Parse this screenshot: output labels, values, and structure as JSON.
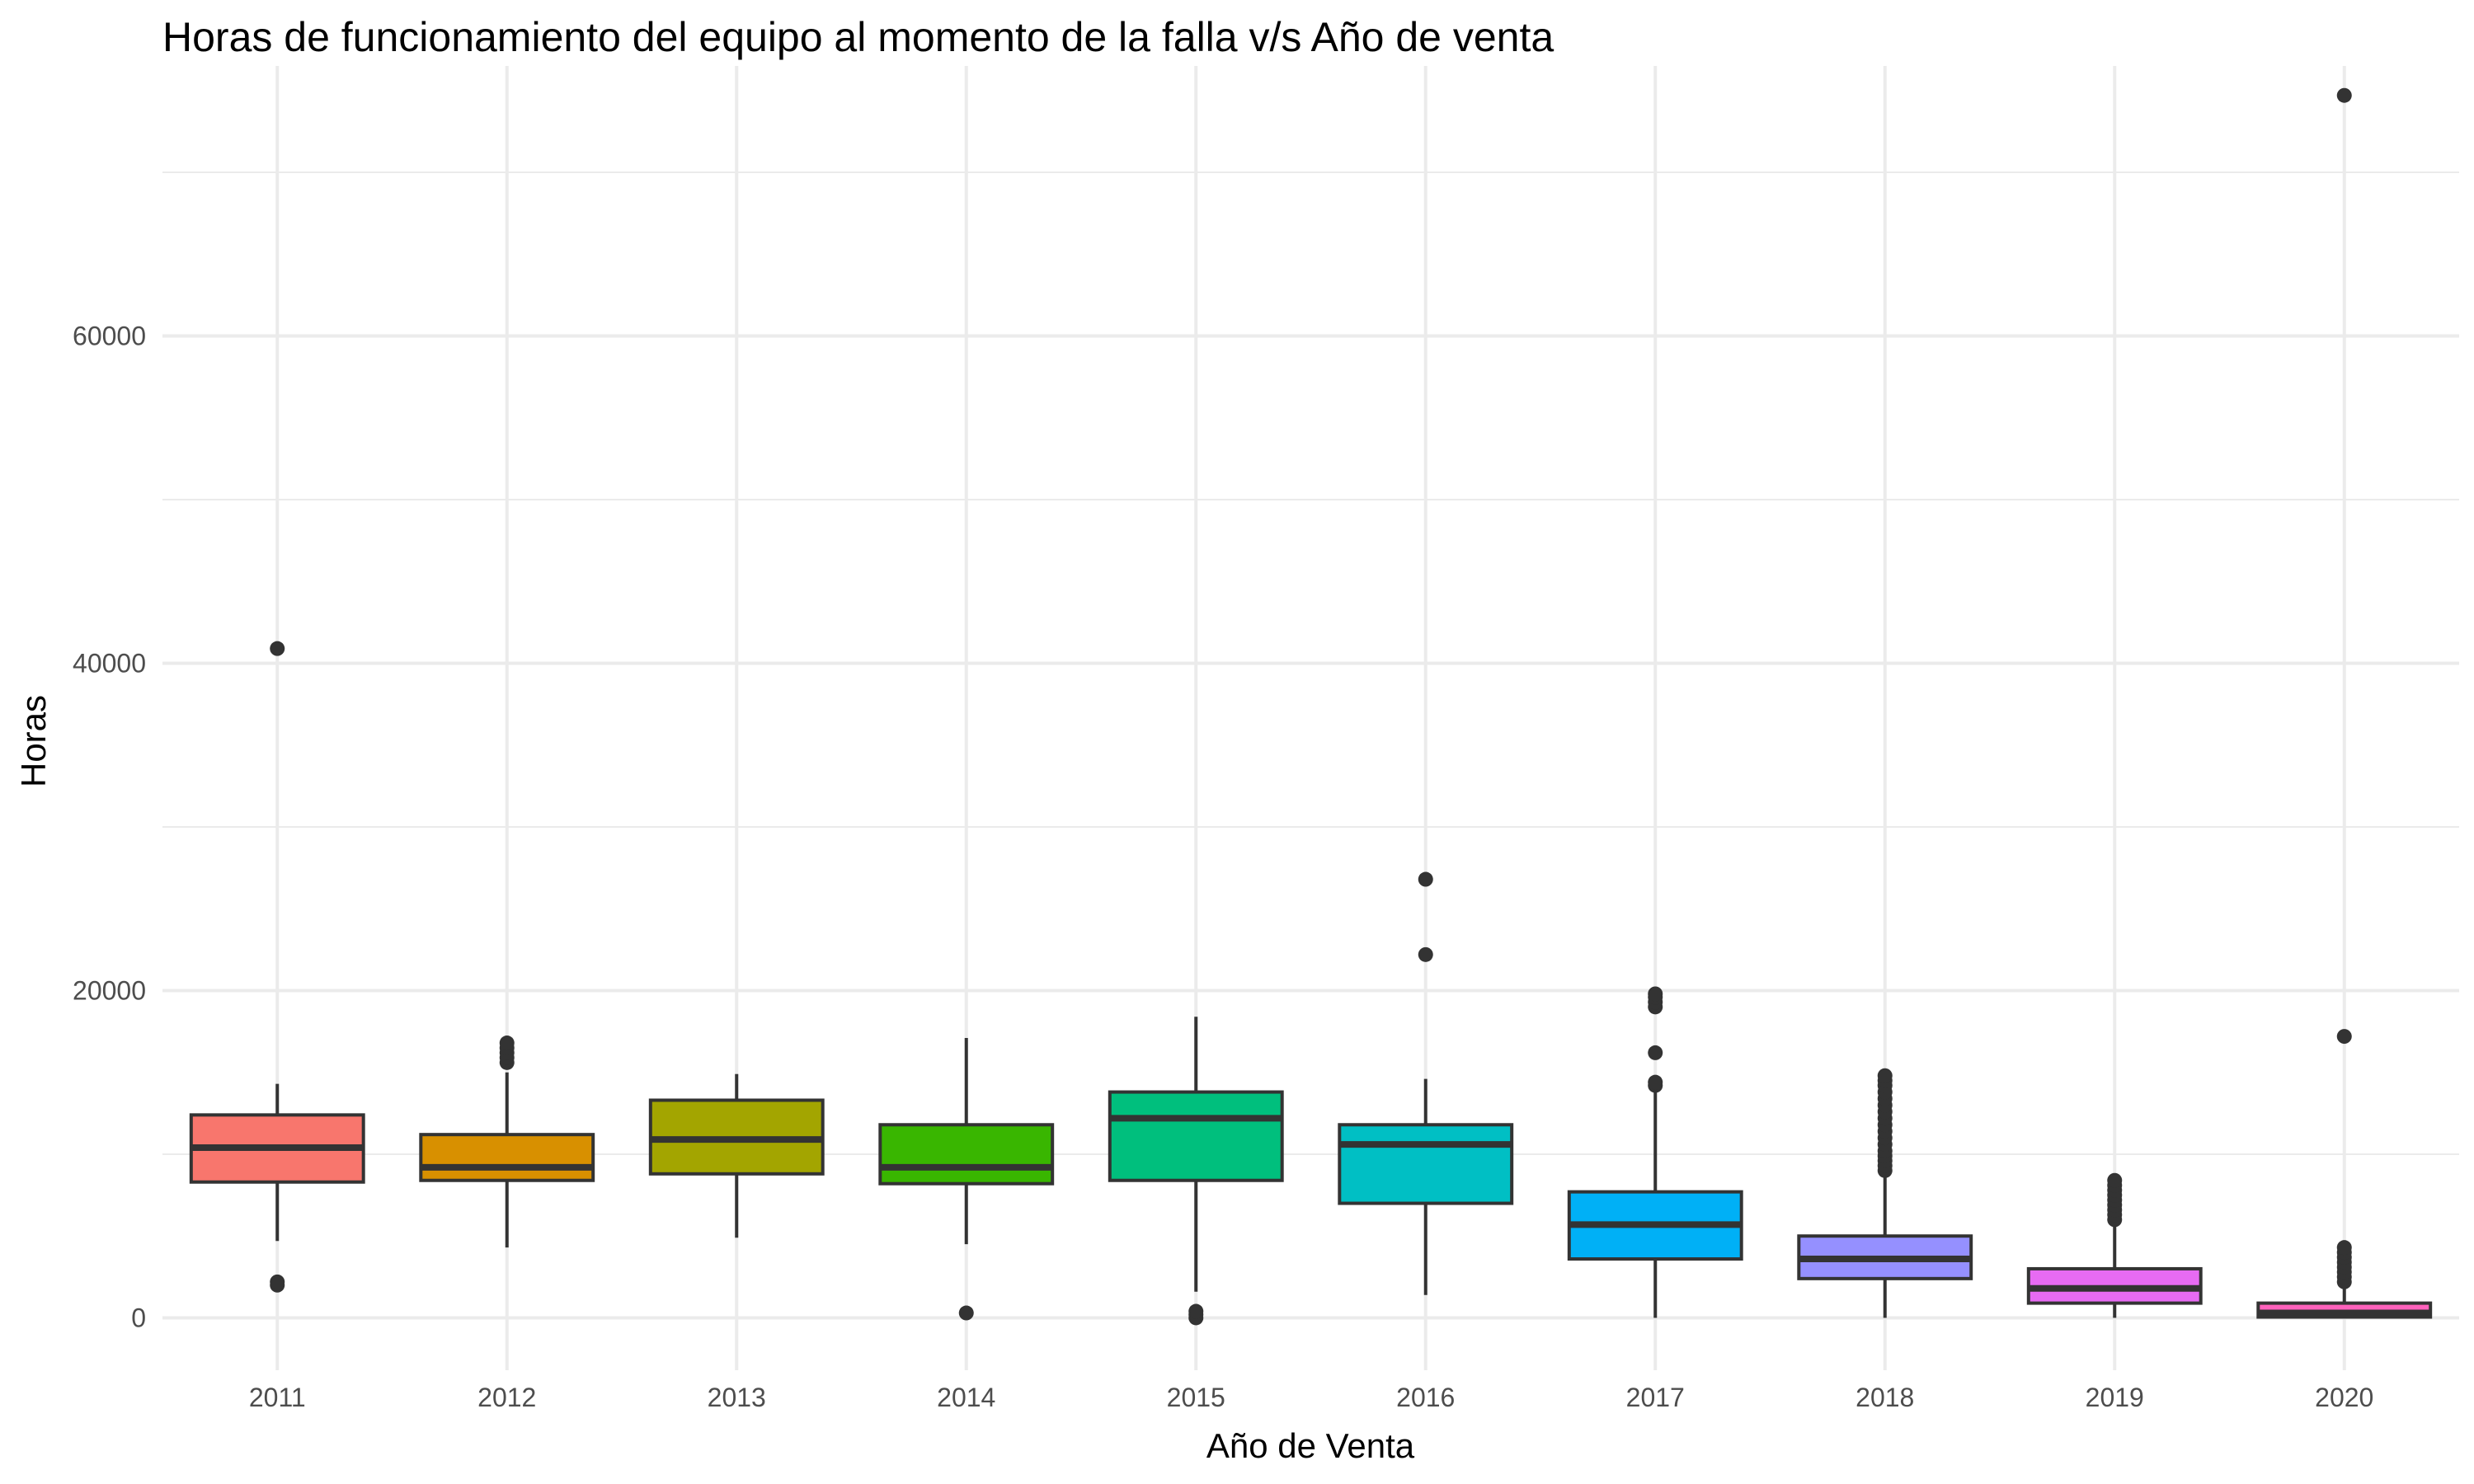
{
  "chart_data": {
    "type": "boxplot",
    "title": "Horas de funcionamiento del equipo al momento de la falla v/s Año de venta",
    "xlabel": "Año de Venta",
    "ylabel": "Horas",
    "ylim": [
      -3200,
      76500
    ],
    "y_ticks": [
      0,
      20000,
      40000,
      60000
    ],
    "y_tick_labels": [
      "0",
      "20000",
      "40000",
      "60000"
    ],
    "grid": true,
    "legend": "none",
    "categories": [
      "2011",
      "2012",
      "2013",
      "2014",
      "2015",
      "2016",
      "2017",
      "2018",
      "2019",
      "2020"
    ],
    "boxes": [
      {
        "category": "2011",
        "color": "#F8766D",
        "lower_whisker": 4700,
        "q1": 8300,
        "median": 10400,
        "q3": 12400,
        "upper_whisker": 14300,
        "outliers": [
          2000,
          2200,
          40900
        ]
      },
      {
        "category": "2012",
        "color": "#D89000",
        "lower_whisker": 4300,
        "q1": 8400,
        "median": 9200,
        "q3": 11200,
        "upper_whisker": 15000,
        "outliers": [
          15600,
          15900,
          16200,
          16500,
          16800
        ]
      },
      {
        "category": "2013",
        "color": "#A3A500",
        "lower_whisker": 4900,
        "q1": 8800,
        "median": 10900,
        "q3": 13300,
        "upper_whisker": 14900,
        "outliers": []
      },
      {
        "category": "2014",
        "color": "#39B600",
        "lower_whisker": 4500,
        "q1": 8200,
        "median": 9200,
        "q3": 11800,
        "upper_whisker": 17100,
        "outliers": [
          300
        ]
      },
      {
        "category": "2015",
        "color": "#00BF7D",
        "lower_whisker": 1600,
        "q1": 8400,
        "median": 12200,
        "q3": 13800,
        "upper_whisker": 18400,
        "outliers": [
          0,
          200,
          400
        ]
      },
      {
        "category": "2016",
        "color": "#00BFC4",
        "lower_whisker": 1400,
        "q1": 7000,
        "median": 10600,
        "q3": 11800,
        "upper_whisker": 14600,
        "outliers": [
          22200,
          26800
        ]
      },
      {
        "category": "2017",
        "color": "#00B0F6",
        "lower_whisker": 0,
        "q1": 3600,
        "median": 5700,
        "q3": 7700,
        "upper_whisker": 13800,
        "outliers": [
          14200,
          14400,
          16200,
          19000,
          19300,
          19600,
          19800
        ]
      },
      {
        "category": "2018",
        "color": "#9590FF",
        "lower_whisker": 0,
        "q1": 2400,
        "median": 3600,
        "q3": 5000,
        "upper_whisker": 8700,
        "outliers": [
          9000,
          9300,
          9600,
          9900,
          10200,
          10600,
          11000,
          11400,
          11800,
          12200,
          12600,
          13000,
          13400,
          13800,
          14200,
          14500,
          14800
        ]
      },
      {
        "category": "2019",
        "color": "#E76BF3",
        "lower_whisker": 0,
        "q1": 900,
        "median": 1800,
        "q3": 3000,
        "upper_whisker": 5800,
        "outliers": [
          6000,
          6300,
          6600,
          6900,
          7200,
          7500,
          7800,
          8100,
          8400
        ]
      },
      {
        "category": "2020",
        "color": "#FF62BC",
        "lower_whisker": 0,
        "q1": 50,
        "median": 300,
        "q3": 900,
        "upper_whisker": 2000,
        "outliers": [
          2200,
          2500,
          2800,
          3100,
          3400,
          3700,
          4000,
          4300,
          17200,
          74700
        ]
      }
    ]
  }
}
